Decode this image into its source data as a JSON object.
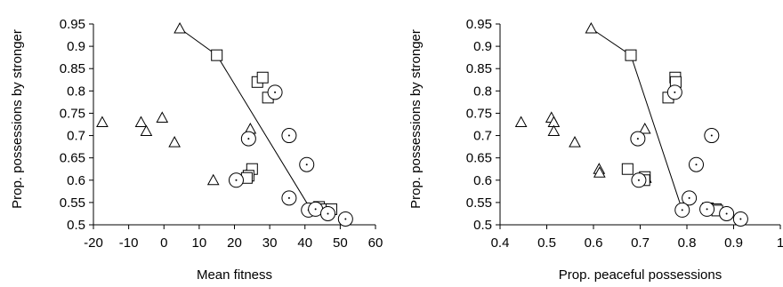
{
  "chart_data": [
    {
      "type": "scatter",
      "xlabel": "Mean fitness",
      "ylabel": "Prop. possessions by stronger",
      "xlim": [
        -20,
        60
      ],
      "ylim": [
        0.5,
        0.95
      ],
      "x_ticks": [
        "-20",
        "-10",
        "0",
        "10",
        "20",
        "30",
        "40",
        "50",
        "60"
      ],
      "y_ticks": [
        "0.5",
        "0.55",
        "0.6",
        "0.65",
        "0.7",
        "0.75",
        "0.8",
        "0.85",
        "0.9",
        "0.95"
      ],
      "grid": false,
      "legend": "none",
      "series": [
        {
          "marker": "triangle",
          "points": [
            [
              -17.5,
              0.73
            ],
            [
              -6.5,
              0.73
            ],
            [
              -5,
              0.71
            ],
            [
              -0.5,
              0.74
            ],
            [
              3,
              0.685
            ],
            [
              4.5,
              0.94
            ],
            [
              14,
              0.6
            ],
            [
              24.5,
              0.715
            ],
            [
              24,
              0.62
            ],
            [
              23.5,
              0.61
            ]
          ]
        },
        {
          "marker": "square",
          "points": [
            [
              15,
              0.88
            ],
            [
              26.5,
              0.82
            ],
            [
              28,
              0.83
            ],
            [
              29.5,
              0.785
            ],
            [
              25,
              0.625
            ],
            [
              24,
              0.61
            ],
            [
              23.5,
              0.605
            ],
            [
              44,
              0.54
            ],
            [
              45,
              0.535
            ],
            [
              47.5,
              0.535
            ]
          ]
        },
        {
          "marker": "circle-dot",
          "points": [
            [
              31.5,
              0.797
            ],
            [
              24,
              0.693
            ],
            [
              20.5,
              0.6
            ],
            [
              35.5,
              0.7
            ],
            [
              40.5,
              0.635
            ],
            [
              35.5,
              0.56
            ],
            [
              41,
              0.533
            ],
            [
              43,
              0.535
            ],
            [
              46.5,
              0.525
            ],
            [
              51.5,
              0.513
            ]
          ]
        }
      ],
      "lines": [
        [
          [
            4.5,
            0.94
          ],
          [
            15,
            0.88
          ],
          [
            42,
            0.53
          ]
        ]
      ]
    },
    {
      "type": "scatter",
      "xlabel": "Prop. peaceful possessions",
      "ylabel": "Prop. possessions by stronger",
      "xlim": [
        0.4,
        1.0
      ],
      "ylim": [
        0.5,
        0.95
      ],
      "x_ticks": [
        "0.4",
        "0.5",
        "0.6",
        "0.7",
        "0.8",
        "0.9",
        "1"
      ],
      "y_ticks": [
        "0.5",
        "0.55",
        "0.6",
        "0.65",
        "0.7",
        "0.75",
        "0.8",
        "0.85",
        "0.9",
        "0.95"
      ],
      "grid": false,
      "legend": "none",
      "series": [
        {
          "marker": "triangle",
          "points": [
            [
              0.445,
              0.73
            ],
            [
              0.51,
              0.74
            ],
            [
              0.515,
              0.73
            ],
            [
              0.515,
              0.71
            ],
            [
              0.56,
              0.685
            ],
            [
              0.595,
              0.94
            ],
            [
              0.612,
              0.625
            ],
            [
              0.613,
              0.617
            ],
            [
              0.71,
              0.715
            ],
            [
              0.712,
              0.605
            ]
          ]
        },
        {
          "marker": "square",
          "points": [
            [
              0.68,
              0.88
            ],
            [
              0.775,
              0.83
            ],
            [
              0.776,
              0.82
            ],
            [
              0.76,
              0.785
            ],
            [
              0.673,
              0.625
            ],
            [
              0.71,
              0.607
            ],
            [
              0.709,
              0.6
            ],
            [
              0.845,
              0.537
            ],
            [
              0.862,
              0.535
            ],
            [
              0.865,
              0.532
            ]
          ]
        },
        {
          "marker": "circle-dot",
          "points": [
            [
              0.774,
              0.797
            ],
            [
              0.695,
              0.693
            ],
            [
              0.697,
              0.6
            ],
            [
              0.853,
              0.7
            ],
            [
              0.82,
              0.635
            ],
            [
              0.805,
              0.56
            ],
            [
              0.79,
              0.533
            ],
            [
              0.843,
              0.535
            ],
            [
              0.885,
              0.525
            ],
            [
              0.915,
              0.513
            ]
          ]
        }
      ],
      "lines": [
        [
          [
            0.595,
            0.94
          ],
          [
            0.68,
            0.88
          ],
          [
            0.79,
            0.533
          ]
        ]
      ]
    }
  ]
}
